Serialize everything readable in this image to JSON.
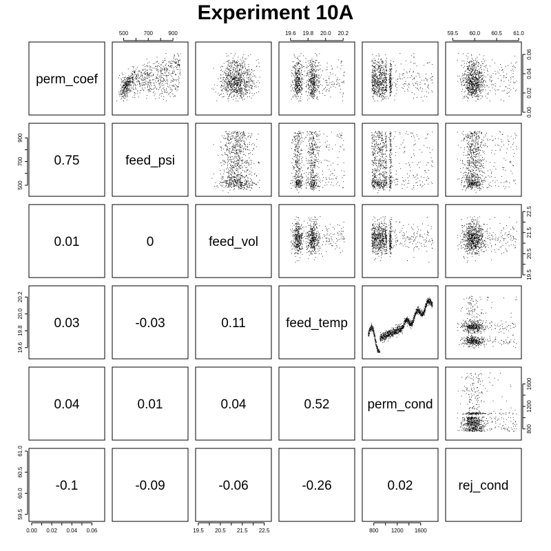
{
  "chart_data": {
    "type": "scatter",
    "title": "Experiment 10A",
    "variables": [
      {
        "name": "perm_coef",
        "range": [
          0.0,
          0.07
        ],
        "ticks": [
          0.0,
          0.02,
          0.04,
          0.06
        ],
        "tick_labels": [
          "0.00",
          "0.02",
          "0.04",
          "0.06"
        ],
        "bottom_ticks": [
          0.0,
          0.01,
          0.02,
          0.03,
          0.04,
          0.05,
          0.06
        ],
        "bottom_tick_labels": [
          "0.00",
          "0.02",
          "0.04",
          "0.06"
        ]
      },
      {
        "name": "feed_psi",
        "range": [
          430,
          1000
        ],
        "ticks": [
          500,
          700,
          900
        ],
        "tick_labels": [
          "500",
          "700",
          "900"
        ],
        "minor_ticks": [
          600,
          800
        ]
      },
      {
        "name": "feed_vol",
        "range": [
          19.5,
          22.7
        ],
        "ticks": [
          19.5,
          20.5,
          21.5,
          22.5
        ],
        "tick_labels": [
          "19.5",
          "20.5",
          "21.5",
          "22.5"
        ],
        "minor_ticks": [
          20.0,
          21.0,
          22.0
        ]
      },
      {
        "name": "feed_temp",
        "range": [
          19.5,
          20.3
        ],
        "ticks": [
          19.6,
          19.8,
          20.0,
          20.2
        ],
        "tick_labels": [
          "19.6",
          "19.8",
          "20.0",
          "20.2"
        ]
      },
      {
        "name": "perm_cond",
        "range": [
          650,
          1850
        ],
        "ticks": [
          800,
          1200,
          1600
        ],
        "tick_labels": [
          "800",
          "1200",
          "1600"
        ],
        "minor_ticks": [
          1000,
          1400
        ]
      },
      {
        "name": "rej_cond",
        "range": [
          59.4,
          61.0
        ],
        "ticks": [
          59.5,
          60.0,
          60.5,
          61.0
        ],
        "tick_labels": [
          "59.5",
          "60.0",
          "60.5",
          "61.0"
        ]
      }
    ],
    "correlations": [
      {
        "row": 1,
        "col": 0,
        "value": "0.75"
      },
      {
        "row": 2,
        "col": 0,
        "value": "0.01"
      },
      {
        "row": 2,
        "col": 1,
        "value": "0"
      },
      {
        "row": 3,
        "col": 0,
        "value": "0.03"
      },
      {
        "row": 3,
        "col": 1,
        "value": "-0.03"
      },
      {
        "row": 3,
        "col": 2,
        "value": "0.11"
      },
      {
        "row": 4,
        "col": 0,
        "value": "0.04"
      },
      {
        "row": 4,
        "col": 1,
        "value": "0.01"
      },
      {
        "row": 4,
        "col": 2,
        "value": "0.04"
      },
      {
        "row": 4,
        "col": 3,
        "value": "0.52"
      },
      {
        "row": 5,
        "col": 0,
        "value": "-0.1"
      },
      {
        "row": 5,
        "col": 1,
        "value": "-0.09"
      },
      {
        "row": 5,
        "col": 2,
        "value": "-0.06"
      },
      {
        "row": 5,
        "col": 3,
        "value": "-0.26"
      },
      {
        "row": 5,
        "col": 4,
        "value": "0.02"
      }
    ],
    "axes": {
      "top": [
        1,
        3,
        5
      ],
      "bottom": [
        0,
        2,
        4
      ],
      "left": [
        1,
        3,
        5
      ],
      "right": [
        0,
        2,
        4
      ]
    },
    "point_color": "#000000",
    "frame_color": "#000000",
    "background": "#ffffff"
  }
}
